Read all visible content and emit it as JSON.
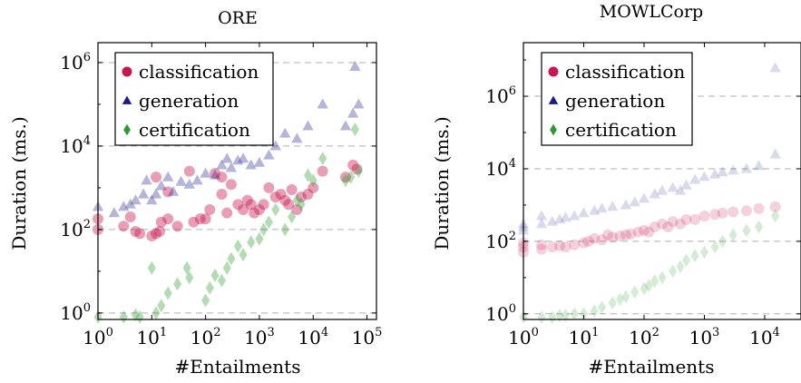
{
  "colors": {
    "classification": "#c8174f",
    "generation": "#1a1a8c",
    "certification": "#2f9a2f"
  },
  "chart_data": [
    {
      "type": "scatter",
      "title": "ORE",
      "xlabel": "#Entailments",
      "ylabel": "Duration (ms.)",
      "xscale": "log",
      "yscale": "log",
      "xlim": [
        1,
        150000
      ],
      "ylim": [
        0.7,
        3000000
      ],
      "xticks": [
        {
          "base": "10",
          "exp": "0"
        },
        {
          "base": "10",
          "exp": "1"
        },
        {
          "base": "10",
          "exp": "2"
        },
        {
          "base": "10",
          "exp": "3"
        },
        {
          "base": "10",
          "exp": "4"
        },
        {
          "base": "10",
          "exp": "5"
        }
      ],
      "yticks": [
        {
          "base": "10",
          "exp": "0"
        },
        {
          "base": "10",
          "exp": "2"
        },
        {
          "base": "10",
          "exp": "4"
        },
        {
          "base": "10",
          "exp": "6"
        }
      ],
      "grid": "horizontal dashed at major y ticks",
      "legend_position": "top-left",
      "series": [
        {
          "name": "classification",
          "marker": "circle",
          "points": [
            [
              1,
              100
            ],
            [
              1,
              180
            ],
            [
              3,
              120
            ],
            [
              4,
              200
            ],
            [
              5,
              90
            ],
            [
              6,
              80
            ],
            [
              10,
              70
            ],
            [
              12,
              80
            ],
            [
              12,
              1800
            ],
            [
              14,
              90
            ],
            [
              15,
              150
            ],
            [
              20,
              180
            ],
            [
              20,
              800
            ],
            [
              30,
              120
            ],
            [
              50,
              2500
            ],
            [
              60,
              150
            ],
            [
              80,
              180
            ],
            [
              100,
              180
            ],
            [
              120,
              300
            ],
            [
              150,
              2200
            ],
            [
              200,
              700
            ],
            [
              200,
              1800
            ],
            [
              250,
              250
            ],
            [
              300,
              1200
            ],
            [
              400,
              400
            ],
            [
              500,
              300
            ],
            [
              600,
              500
            ],
            [
              700,
              400
            ],
            [
              800,
              250
            ],
            [
              1000,
              300
            ],
            [
              1200,
              400
            ],
            [
              1500,
              1000
            ],
            [
              2000,
              600
            ],
            [
              2500,
              700
            ],
            [
              3000,
              500
            ],
            [
              3500,
              400
            ],
            [
              4000,
              900
            ],
            [
              5000,
              300
            ],
            [
              6000,
              600
            ],
            [
              8000,
              700
            ],
            [
              10000,
              1000
            ],
            [
              15000,
              2500
            ],
            [
              40000,
              1800
            ],
            [
              55000,
              3500
            ],
            [
              65000,
              2800
            ]
          ]
        },
        {
          "name": "generation",
          "marker": "triangle",
          "points": [
            [
              1,
              350
            ],
            [
              2,
              250
            ],
            [
              3,
              350
            ],
            [
              4,
              400
            ],
            [
              5,
              500
            ],
            [
              7,
              700
            ],
            [
              8,
              1500
            ],
            [
              10,
              500
            ],
            [
              12,
              700
            ],
            [
              15,
              1100
            ],
            [
              20,
              1800
            ],
            [
              25,
              800
            ],
            [
              35,
              1400
            ],
            [
              50,
              1200
            ],
            [
              70,
              1500
            ],
            [
              100,
              2200
            ],
            [
              150,
              2000
            ],
            [
              200,
              3500
            ],
            [
              250,
              5000
            ],
            [
              300,
              3000
            ],
            [
              400,
              4500
            ],
            [
              500,
              5000
            ],
            [
              700,
              3500
            ],
            [
              1000,
              4000
            ],
            [
              1500,
              6000
            ],
            [
              2000,
              10000
            ],
            [
              3000,
              20000
            ],
            [
              5000,
              15000
            ],
            [
              8000,
              30000
            ],
            [
              15000,
              100000
            ],
            [
              40000,
              30000
            ],
            [
              55000,
              60000
            ],
            [
              60000,
              800000
            ],
            [
              70000,
              100000
            ]
          ]
        },
        {
          "name": "certification",
          "marker": "diamond",
          "points": [
            [
              1,
              0.8
            ],
            [
              3,
              0.8
            ],
            [
              5,
              0.9
            ],
            [
              6,
              0.8
            ],
            [
              10,
              12
            ],
            [
              12,
              1
            ],
            [
              15,
              1.5
            ],
            [
              20,
              3
            ],
            [
              30,
              5
            ],
            [
              45,
              12
            ],
            [
              50,
              7
            ],
            [
              100,
              2
            ],
            [
              120,
              4
            ],
            [
              150,
              8
            ],
            [
              200,
              6
            ],
            [
              250,
              12
            ],
            [
              300,
              20
            ],
            [
              400,
              40
            ],
            [
              500,
              25
            ],
            [
              700,
              50
            ],
            [
              1000,
              60
            ],
            [
              1200,
              100
            ],
            [
              1500,
              150
            ],
            [
              2000,
              300
            ],
            [
              3000,
              100
            ],
            [
              4000,
              200
            ],
            [
              5000,
              500
            ],
            [
              6000,
              400
            ],
            [
              8000,
              2000
            ],
            [
              10000,
              1500
            ],
            [
              15000,
              5000
            ],
            [
              40000,
              1500
            ],
            [
              50000,
              1800
            ],
            [
              60000,
              25000
            ],
            [
              70000,
              2500
            ]
          ]
        }
      ]
    },
    {
      "type": "scatter",
      "title": "MOWLCorp",
      "xlabel": "#Entailments",
      "ylabel": "Duration (ms.)",
      "xscale": "log",
      "yscale": "log",
      "xlim": [
        1,
        40000
      ],
      "ylim": [
        0.7,
        30000000
      ],
      "xticks": [
        {
          "base": "10",
          "exp": "0"
        },
        {
          "base": "10",
          "exp": "1"
        },
        {
          "base": "10",
          "exp": "2"
        },
        {
          "base": "10",
          "exp": "3"
        },
        {
          "base": "10",
          "exp": "4"
        }
      ],
      "yticks": [
        {
          "base": "10",
          "exp": "0"
        },
        {
          "base": "10",
          "exp": "2"
        },
        {
          "base": "10",
          "exp": "4"
        },
        {
          "base": "10",
          "exp": "6"
        }
      ],
      "grid": "horizontal dashed at major y ticks",
      "legend_position": "top-left",
      "series": [
        {
          "name": "classification",
          "marker": "circle",
          "points": [
            [
              1,
              50
            ],
            [
              1,
              70
            ],
            [
              1,
              90
            ],
            [
              2,
              60
            ],
            [
              2,
              80
            ],
            [
              3,
              70
            ],
            [
              4,
              75
            ],
            [
              5,
              70
            ],
            [
              7,
              80
            ],
            [
              10,
              90
            ],
            [
              12,
              100
            ],
            [
              15,
              120
            ],
            [
              20,
              110
            ],
            [
              25,
              150
            ],
            [
              30,
              130
            ],
            [
              40,
              140
            ],
            [
              50,
              150
            ],
            [
              60,
              160
            ],
            [
              80,
              180
            ],
            [
              100,
              200
            ],
            [
              120,
              180
            ],
            [
              150,
              250
            ],
            [
              200,
              300
            ],
            [
              250,
              250
            ],
            [
              300,
              350
            ],
            [
              400,
              300
            ],
            [
              500,
              400
            ],
            [
              700,
              400
            ],
            [
              1000,
              500
            ],
            [
              1500,
              550
            ],
            [
              2000,
              600
            ],
            [
              3000,
              650
            ],
            [
              5000,
              700
            ],
            [
              8000,
              800
            ],
            [
              15000,
              900
            ]
          ]
        },
        {
          "name": "generation",
          "marker": "triangle",
          "points": [
            [
              1,
              200
            ],
            [
              1,
              250
            ],
            [
              1,
              300
            ],
            [
              2,
              300
            ],
            [
              2,
              500
            ],
            [
              3,
              350
            ],
            [
              4,
              400
            ],
            [
              5,
              450
            ],
            [
              7,
              500
            ],
            [
              10,
              600
            ],
            [
              15,
              700
            ],
            [
              20,
              800
            ],
            [
              30,
              900
            ],
            [
              50,
              1000
            ],
            [
              70,
              1200
            ],
            [
              100,
              1500
            ],
            [
              150,
              2000
            ],
            [
              200,
              2500
            ],
            [
              300,
              3000
            ],
            [
              400,
              2500
            ],
            [
              500,
              3500
            ],
            [
              700,
              5000
            ],
            [
              1000,
              6000
            ],
            [
              1500,
              7000
            ],
            [
              2000,
              8000
            ],
            [
              3000,
              9000
            ],
            [
              5000,
              10000
            ],
            [
              8000,
              12000
            ],
            [
              15000,
              25000
            ],
            [
              15000,
              6000000
            ]
          ]
        },
        {
          "name": "certification",
          "marker": "diamond",
          "points": [
            [
              1,
              0.8
            ],
            [
              2,
              0.8
            ],
            [
              3,
              0.8
            ],
            [
              4,
              0.9
            ],
            [
              5,
              0.9
            ],
            [
              7,
              1
            ],
            [
              10,
              1
            ],
            [
              15,
              1.2
            ],
            [
              20,
              1.5
            ],
            [
              30,
              2
            ],
            [
              40,
              2.5
            ],
            [
              50,
              3
            ],
            [
              70,
              4
            ],
            [
              100,
              5
            ],
            [
              120,
              6
            ],
            [
              150,
              8
            ],
            [
              200,
              10
            ],
            [
              300,
              15
            ],
            [
              400,
              20
            ],
            [
              500,
              30
            ],
            [
              700,
              40
            ],
            [
              1000,
              50
            ],
            [
              1500,
              70
            ],
            [
              2000,
              100
            ],
            [
              3000,
              150
            ],
            [
              5000,
              200
            ],
            [
              8000,
              250
            ],
            [
              15000,
              500
            ]
          ]
        }
      ]
    }
  ]
}
